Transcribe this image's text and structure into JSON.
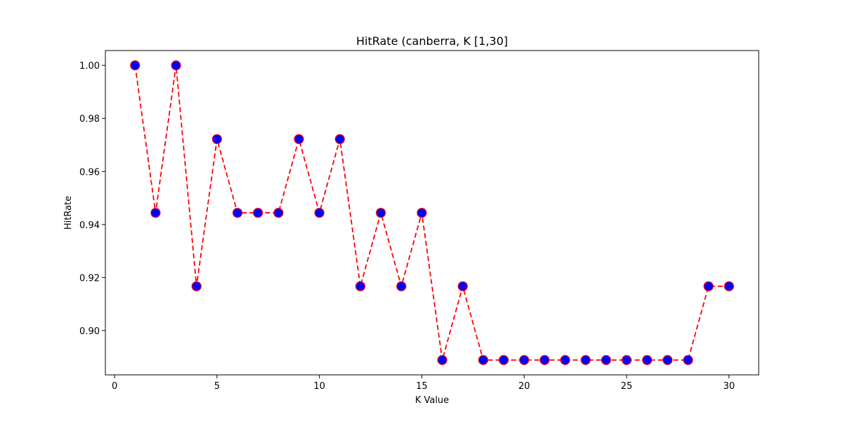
{
  "chart_data": {
    "type": "line",
    "title": "HitRate (canberra, K [1,30]",
    "xlabel": "K Value",
    "ylabel": "HitRate",
    "xlim": [
      -0.45,
      31.45
    ],
    "ylim": [
      0.8833,
      1.0056
    ],
    "xticks": [
      0,
      5,
      10,
      15,
      20,
      25,
      30
    ],
    "xtick_labels": [
      "0",
      "5",
      "10",
      "15",
      "20",
      "25",
      "30"
    ],
    "yticks": [
      0.9,
      0.92,
      0.94,
      0.96,
      0.98,
      1.0
    ],
    "ytick_labels": [
      "0.90",
      "0.92",
      "0.94",
      "0.96",
      "0.98",
      "1.00"
    ],
    "grid": false,
    "legend": "none",
    "series": [
      {
        "x": [
          1,
          2,
          3,
          4,
          5,
          6,
          7,
          8,
          9,
          10,
          11,
          12,
          13,
          14,
          15,
          16,
          17,
          18,
          19,
          20,
          21,
          22,
          23,
          24,
          25,
          26,
          27,
          28,
          29,
          30
        ],
        "y": [
          1.0,
          0.9444,
          1.0,
          0.9167,
          0.9722,
          0.9444,
          0.9444,
          0.9444,
          0.9722,
          0.9444,
          0.9722,
          0.9167,
          0.9444,
          0.9167,
          0.9444,
          0.8889,
          0.9167,
          0.8889,
          0.8889,
          0.8889,
          0.8889,
          0.8889,
          0.8889,
          0.8889,
          0.8889,
          0.8889,
          0.8889,
          0.8889,
          0.9167,
          0.9167
        ],
        "line_color": "#ff0000",
        "line_style": "dashed",
        "marker": "circle",
        "marker_face_color": "#0000ff",
        "marker_edge_color": "#ff0000"
      }
    ]
  }
}
